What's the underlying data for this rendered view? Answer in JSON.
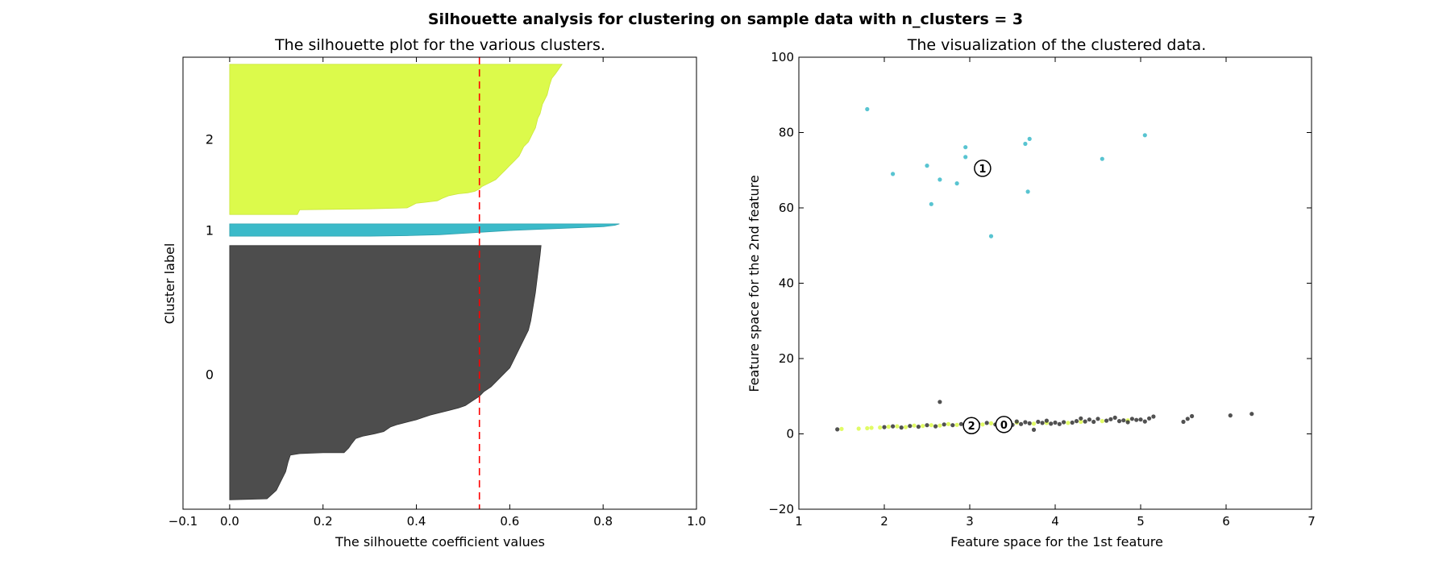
{
  "suptitle": "Silhouette analysis for clustering on sample data with n_clusters = 3",
  "chart_data": [
    {
      "type": "area",
      "title": "The silhouette plot for the various clusters.",
      "xlabel": "The silhouette coefficient values",
      "ylabel": "Cluster label",
      "xlim": [
        -0.1,
        1.0
      ],
      "xticks": [
        -0.1,
        0.0,
        0.2,
        0.4,
        0.6,
        0.8,
        1.0
      ],
      "xtick_labels": [
        "−0.1",
        "0.0",
        "0.2",
        "0.4",
        "0.6",
        "0.8",
        "1.0"
      ],
      "ylim": [
        0,
        96
      ],
      "average_silhouette": 0.535,
      "average_line_color": "#ff0000",
      "clusters": [
        {
          "label": "0",
          "color": "#4d4d4d",
          "edge": "#333333",
          "y_range": [
            2,
            56
          ],
          "y_label_pos": 28.7,
          "profile": [
            [
              0.667,
              56
            ],
            [
              0.665,
              54
            ],
            [
              0.66,
              50
            ],
            [
              0.655,
              46
            ],
            [
              0.65,
              43
            ],
            [
              0.645,
              40
            ],
            [
              0.64,
              38
            ],
            [
              0.63,
              36
            ],
            [
              0.62,
              34
            ],
            [
              0.61,
              32
            ],
            [
              0.6,
              30
            ],
            [
              0.59,
              29
            ],
            [
              0.58,
              28
            ],
            [
              0.57,
              27
            ],
            [
              0.56,
              26
            ],
            [
              0.545,
              25
            ],
            [
              0.535,
              24
            ],
            [
              0.52,
              23
            ],
            [
              0.505,
              22
            ],
            [
              0.49,
              21.5
            ],
            [
              0.47,
              21
            ],
            [
              0.45,
              20.5
            ],
            [
              0.43,
              20
            ],
            [
              0.415,
              19.5
            ],
            [
              0.4,
              19
            ],
            [
              0.38,
              18.5
            ],
            [
              0.36,
              18
            ],
            [
              0.345,
              17.5
            ],
            [
              0.33,
              16.5
            ],
            [
              0.31,
              16
            ],
            [
              0.285,
              15.5
            ],
            [
              0.27,
              15
            ],
            [
              0.262,
              14
            ],
            [
              0.255,
              13
            ],
            [
              0.245,
              12
            ],
            [
              0.2,
              12
            ],
            [
              0.15,
              11.8
            ],
            [
              0.13,
              11.5
            ],
            [
              0.125,
              10
            ],
            [
              0.12,
              8
            ],
            [
              0.11,
              6
            ],
            [
              0.1,
              4
            ],
            [
              0.08,
              2.2
            ],
            [
              0.0,
              2
            ]
          ]
        },
        {
          "label": "1",
          "color": "#3bbac9",
          "edge": "#2fa0ae",
          "y_range": [
            58,
            60.6
          ],
          "y_label_pos": 59.3,
          "profile": [
            [
              0.835,
              60.6
            ],
            [
              0.825,
              60.3
            ],
            [
              0.8,
              60.0
            ],
            [
              0.7,
              59.6
            ],
            [
              0.6,
              59.2
            ],
            [
              0.55,
              58.9
            ],
            [
              0.5,
              58.6
            ],
            [
              0.45,
              58.3
            ],
            [
              0.38,
              58.1
            ],
            [
              0.3,
              58.0
            ],
            [
              0.0,
              58
            ]
          ]
        },
        {
          "label": "2",
          "color": "#dcfa4b",
          "edge": "#cbe63c",
          "y_range": [
            62.6,
            94.5
          ],
          "y_label_pos": 78.6,
          "profile": [
            [
              0.712,
              94.5
            ],
            [
              0.705,
              93.5
            ],
            [
              0.698,
              92.5
            ],
            [
              0.69,
              91.5
            ],
            [
              0.685,
              90
            ],
            [
              0.68,
              88
            ],
            [
              0.675,
              87
            ],
            [
              0.67,
              86
            ],
            [
              0.665,
              84
            ],
            [
              0.66,
              83
            ],
            [
              0.655,
              81
            ],
            [
              0.65,
              80
            ],
            [
              0.645,
              79
            ],
            [
              0.64,
              78
            ],
            [
              0.63,
              77
            ],
            [
              0.625,
              76
            ],
            [
              0.62,
              75
            ],
            [
              0.61,
              74
            ],
            [
              0.6,
              73
            ],
            [
              0.59,
              72
            ],
            [
              0.58,
              71
            ],
            [
              0.57,
              70
            ],
            [
              0.56,
              69.5
            ],
            [
              0.55,
              69
            ],
            [
              0.54,
              68.5
            ],
            [
              0.535,
              68
            ],
            [
              0.525,
              67.5
            ],
            [
              0.51,
              67.2
            ],
            [
              0.49,
              67
            ],
            [
              0.47,
              66.6
            ],
            [
              0.455,
              66
            ],
            [
              0.445,
              65.5
            ],
            [
              0.42,
              65.2
            ],
            [
              0.4,
              65
            ],
            [
              0.39,
              64.5
            ],
            [
              0.38,
              64
            ],
            [
              0.3,
              63.8
            ],
            [
              0.15,
              63.6
            ],
            [
              0.145,
              62.6
            ],
            [
              0.0,
              62.6
            ]
          ]
        }
      ]
    },
    {
      "type": "scatter",
      "title": "The visualization of the clustered data.",
      "xlabel": "Feature space for the 1st feature",
      "ylabel": "Feature space for the 2nd feature",
      "xlim": [
        1,
        7
      ],
      "ylim": [
        -20,
        100
      ],
      "xticks": [
        1,
        2,
        3,
        4,
        5,
        6,
        7
      ],
      "xtick_labels": [
        "1",
        "2",
        "3",
        "4",
        "5",
        "6",
        "7"
      ],
      "yticks": [
        -20,
        0,
        20,
        40,
        60,
        80,
        100
      ],
      "ytick_labels": [
        "−20",
        "0",
        "20",
        "40",
        "60",
        "80",
        "100"
      ],
      "series": [
        {
          "cluster": "0",
          "color": "#333333",
          "points": [
            [
              1.45,
              1.2
            ],
            [
              2.65,
              8.5
            ],
            [
              3.2,
              2.9
            ],
            [
              3.3,
              2.5
            ],
            [
              3.45,
              3.0
            ],
            [
              3.55,
              3.3
            ],
            [
              3.6,
              2.6
            ],
            [
              3.65,
              3.1
            ],
            [
              3.7,
              2.8
            ],
            [
              3.75,
              1.1
            ],
            [
              3.8,
              3.2
            ],
            [
              3.85,
              2.9
            ],
            [
              3.9,
              3.5
            ],
            [
              3.95,
              2.7
            ],
            [
              4.0,
              3.0
            ],
            [
              4.05,
              2.6
            ],
            [
              4.1,
              3.1
            ],
            [
              4.2,
              3.0
            ],
            [
              4.25,
              3.4
            ],
            [
              4.3,
              4.1
            ],
            [
              4.35,
              3.3
            ],
            [
              4.4,
              3.8
            ],
            [
              4.45,
              3.2
            ],
            [
              4.5,
              4.0
            ],
            [
              4.6,
              3.5
            ],
            [
              4.65,
              3.9
            ],
            [
              4.7,
              4.3
            ],
            [
              4.75,
              3.4
            ],
            [
              4.8,
              3.6
            ],
            [
              4.85,
              3.1
            ],
            [
              4.9,
              4.0
            ],
            [
              4.95,
              3.7
            ],
            [
              5.0,
              3.8
            ],
            [
              5.05,
              3.3
            ],
            [
              5.1,
              4.1
            ],
            [
              5.15,
              4.6
            ],
            [
              5.5,
              3.2
            ],
            [
              5.55,
              4.0
            ],
            [
              5.6,
              4.7
            ],
            [
              6.05,
              4.9
            ],
            [
              6.3,
              5.3
            ],
            [
              2.0,
              1.8
            ],
            [
              2.1,
              2.0
            ],
            [
              2.2,
              1.7
            ],
            [
              2.3,
              2.1
            ],
            [
              2.4,
              1.9
            ],
            [
              2.5,
              2.3
            ],
            [
              2.6,
              2.0
            ],
            [
              2.7,
              2.5
            ],
            [
              2.8,
              2.3
            ],
            [
              2.9,
              2.6
            ],
            [
              3.0,
              2.4
            ],
            [
              3.1,
              2.7
            ],
            [
              3.35,
              2.9
            ],
            [
              3.5,
              2.4
            ]
          ]
        },
        {
          "cluster": "1",
          "color": "#3bbac9",
          "points": [
            [
              1.8,
              86.2
            ],
            [
              2.1,
              69.0
            ],
            [
              2.5,
              71.2
            ],
            [
              2.55,
              61.0
            ],
            [
              2.65,
              67.5
            ],
            [
              2.85,
              66.5
            ],
            [
              2.95,
              76.1
            ],
            [
              2.95,
              73.5
            ],
            [
              3.25,
              52.5
            ],
            [
              3.65,
              77.0
            ],
            [
              3.7,
              78.3
            ],
            [
              3.68,
              64.3
            ],
            [
              4.55,
              73.0
            ],
            [
              5.05,
              79.3
            ]
          ]
        },
        {
          "cluster": "2",
          "color": "#dcfa4b",
          "points": [
            [
              1.5,
              1.3
            ],
            [
              1.7,
              1.4
            ],
            [
              1.8,
              1.5
            ],
            [
              1.85,
              1.6
            ],
            [
              1.95,
              1.7
            ],
            [
              2.05,
              1.9
            ],
            [
              2.15,
              2.0
            ],
            [
              2.25,
              1.8
            ],
            [
              2.35,
              2.2
            ],
            [
              2.45,
              2.1
            ],
            [
              2.55,
              2.3
            ],
            [
              2.65,
              2.2
            ],
            [
              2.75,
              2.6
            ],
            [
              2.85,
              2.4
            ],
            [
              3.05,
              2.7
            ],
            [
              3.15,
              2.5
            ],
            [
              3.25,
              2.8
            ],
            [
              3.45,
              2.6
            ],
            [
              3.55,
              3.0
            ],
            [
              3.75,
              2.7
            ],
            [
              3.9,
              2.9
            ],
            [
              4.15,
              2.9
            ],
            [
              4.3,
              3.2
            ],
            [
              4.55,
              3.4
            ],
            [
              4.85,
              3.6
            ]
          ]
        }
      ],
      "centers": [
        {
          "label": "0",
          "x": 3.4,
          "y": 2.5
        },
        {
          "label": "1",
          "x": 3.15,
          "y": 70.5
        },
        {
          "label": "2",
          "x": 3.02,
          "y": 2.2
        }
      ]
    }
  ]
}
